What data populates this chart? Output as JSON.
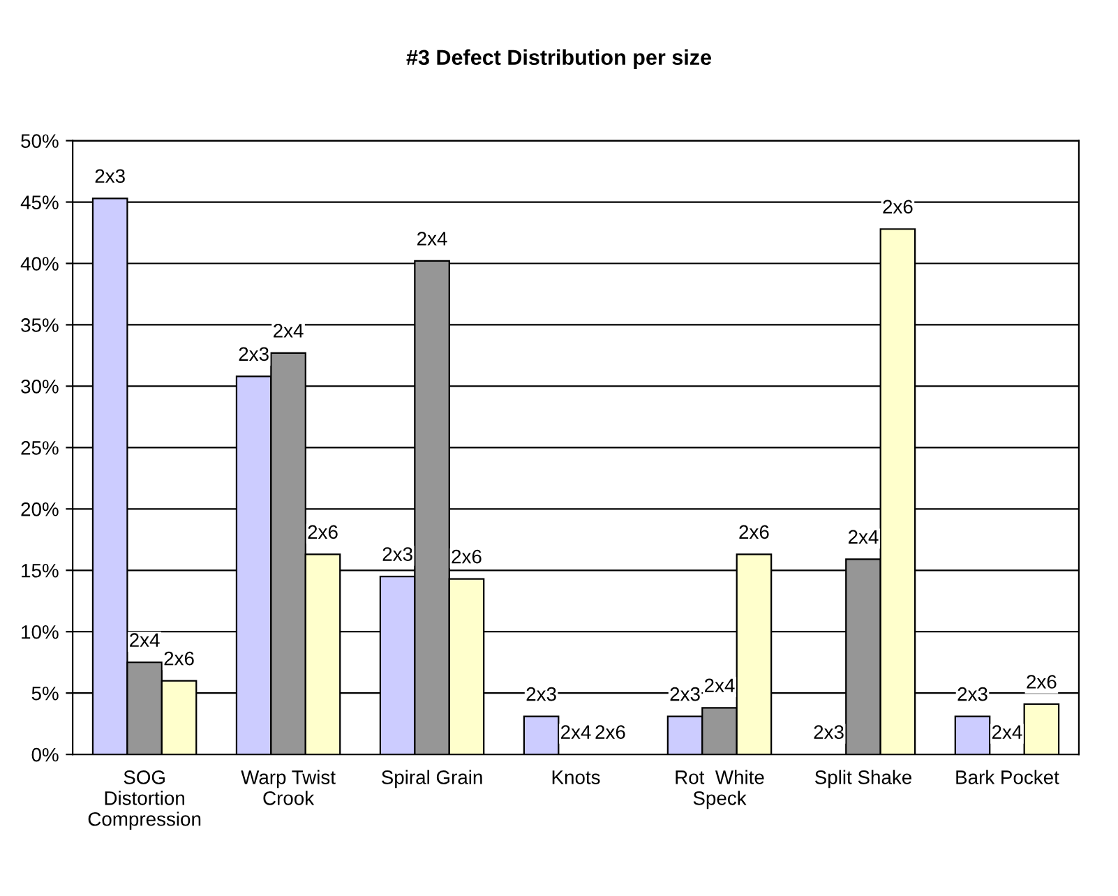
{
  "chart_data": {
    "type": "bar",
    "title": "#3 Defect Distribution per size",
    "categories": [
      "SOG\nDistortion\nCompression",
      "Warp Twist\nCrook",
      "Spiral Grain",
      "Knots",
      "Rot  White\nSpeck",
      "Split Shake",
      "Bark Pocket"
    ],
    "series": [
      {
        "name": "2x3",
        "color": "#ccccff",
        "values": [
          45.3,
          30.8,
          14.5,
          3.1,
          3.1,
          0,
          3.1
        ]
      },
      {
        "name": "2x4",
        "color": "#969696",
        "values": [
          7.5,
          32.7,
          40.2,
          0,
          3.8,
          15.9,
          0
        ]
      },
      {
        "name": "2x6",
        "color": "#ffffcc",
        "values": [
          6.0,
          16.3,
          14.3,
          0,
          16.3,
          42.8,
          4.1
        ]
      }
    ],
    "ylim": [
      0,
      50
    ],
    "yticks": [
      {
        "value": 0,
        "label": "0%"
      },
      {
        "value": 5,
        "label": "5%"
      },
      {
        "value": 10,
        "label": "10%"
      },
      {
        "value": 15,
        "label": "15%"
      },
      {
        "value": 20,
        "label": "20%"
      },
      {
        "value": 25,
        "label": "25%"
      },
      {
        "value": 30,
        "label": "30%"
      },
      {
        "value": 35,
        "label": "35%"
      },
      {
        "value": 40,
        "label": "40%"
      },
      {
        "value": 45,
        "label": "45%"
      },
      {
        "value": 50,
        "label": "50%"
      }
    ],
    "grid": "y"
  }
}
